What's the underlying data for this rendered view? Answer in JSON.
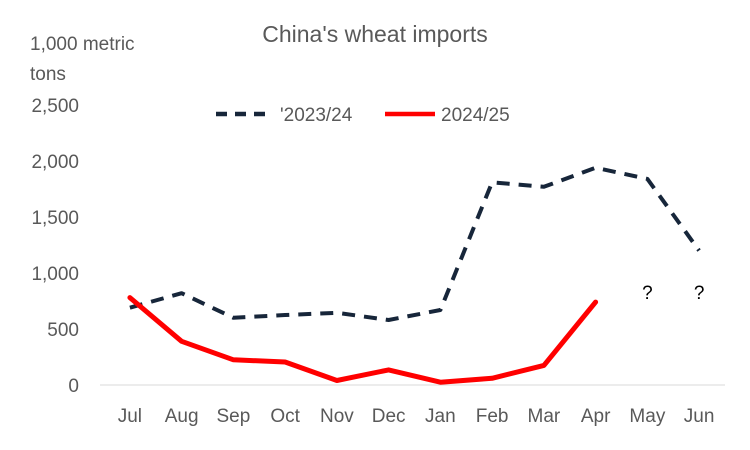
{
  "chart_data": {
    "type": "line",
    "title": "China's wheat imports",
    "ylabel_line1": "1,000 metric",
    "ylabel_line2": "tons",
    "xlabel": "",
    "categories": [
      "Jul",
      "Aug",
      "Sep",
      "Oct",
      "Nov",
      "Dec",
      "Jan",
      "Feb",
      "Mar",
      "Apr",
      "May",
      "Jun"
    ],
    "ylim": [
      0,
      2500
    ],
    "yticks": [
      0,
      500,
      1000,
      1500,
      2000,
      2500
    ],
    "ytick_labels": [
      "0",
      "500",
      "1,000",
      "1,500",
      "2,000",
      "2,500"
    ],
    "grid": false,
    "legend_position": "top",
    "series": [
      {
        "name": "'2023/24",
        "color": "#17263a",
        "style": "dashed",
        "values": [
          690,
          820,
          600,
          625,
          645,
          580,
          670,
          1810,
          1770,
          1940,
          1840,
          1200
        ]
      },
      {
        "name": "2024/25",
        "color": "#ff0000",
        "style": "solid",
        "values": [
          780,
          390,
          225,
          205,
          40,
          135,
          25,
          60,
          175,
          740,
          null,
          null
        ]
      }
    ],
    "annotations": [
      {
        "category": "May",
        "value": 770,
        "text": "?"
      },
      {
        "category": "Jun",
        "value": 770,
        "text": "?"
      }
    ]
  }
}
